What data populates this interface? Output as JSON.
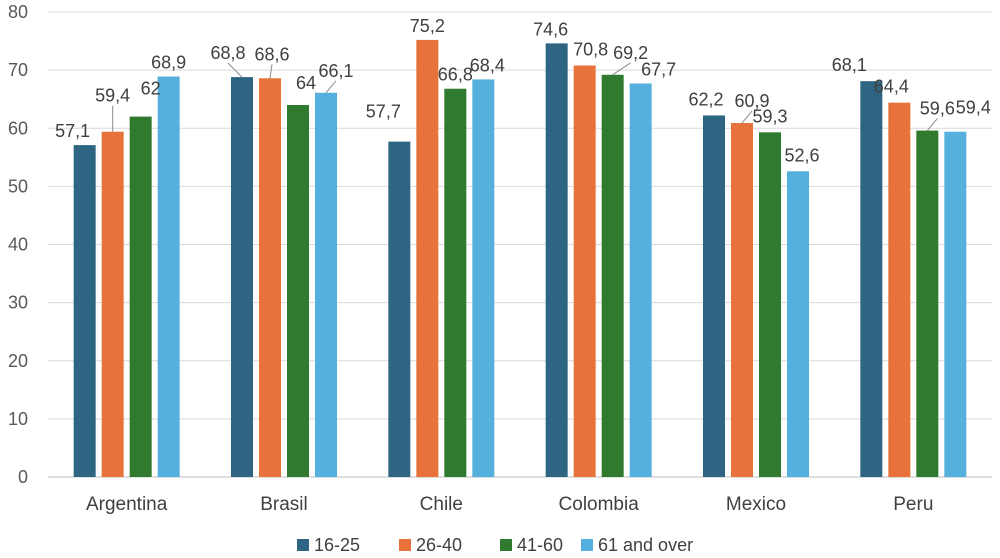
{
  "chart_data": {
    "type": "bar",
    "categories": [
      "Argentina",
      "Brasil",
      "Chile",
      "Colombia",
      "Mexico",
      "Peru"
    ],
    "series": [
      {
        "name": "16-25",
        "color": "#2e6583",
        "values": [
          57.1,
          68.8,
          57.7,
          74.6,
          62.2,
          68.1
        ],
        "labels": [
          "57,1",
          "68,8",
          "57,7",
          "74,6",
          "62,2",
          "68,1"
        ]
      },
      {
        "name": "26-40",
        "color": "#e8733a",
        "values": [
          59.4,
          68.6,
          75.2,
          70.8,
          60.9,
          64.4
        ],
        "labels": [
          "59,4",
          "68,6",
          "75,2",
          "70,8",
          "60,9",
          "64,4"
        ]
      },
      {
        "name": "41-60",
        "color": "#2f7a2e",
        "values": [
          62,
          64,
          66.8,
          69.2,
          59.3,
          59.6
        ],
        "labels": [
          "62",
          "64",
          "66,8",
          "69,2",
          "59,3",
          "59,6"
        ]
      },
      {
        "name": "61 and over",
        "color": "#55b0dd",
        "values": [
          68.9,
          66.1,
          68.4,
          67.7,
          52.6,
          59.4
        ],
        "labels": [
          "68,9",
          "66,1",
          "68,4",
          "67,7",
          "52,6",
          "59,4"
        ]
      }
    ],
    "ylim": [
      0,
      80
    ],
    "yticks": [
      "0",
      "10",
      "20",
      "30",
      "40",
      "50",
      "60",
      "70",
      "80"
    ],
    "grid": true,
    "legend_position": "bottom",
    "title": "",
    "xlabel": "",
    "ylabel": ""
  }
}
